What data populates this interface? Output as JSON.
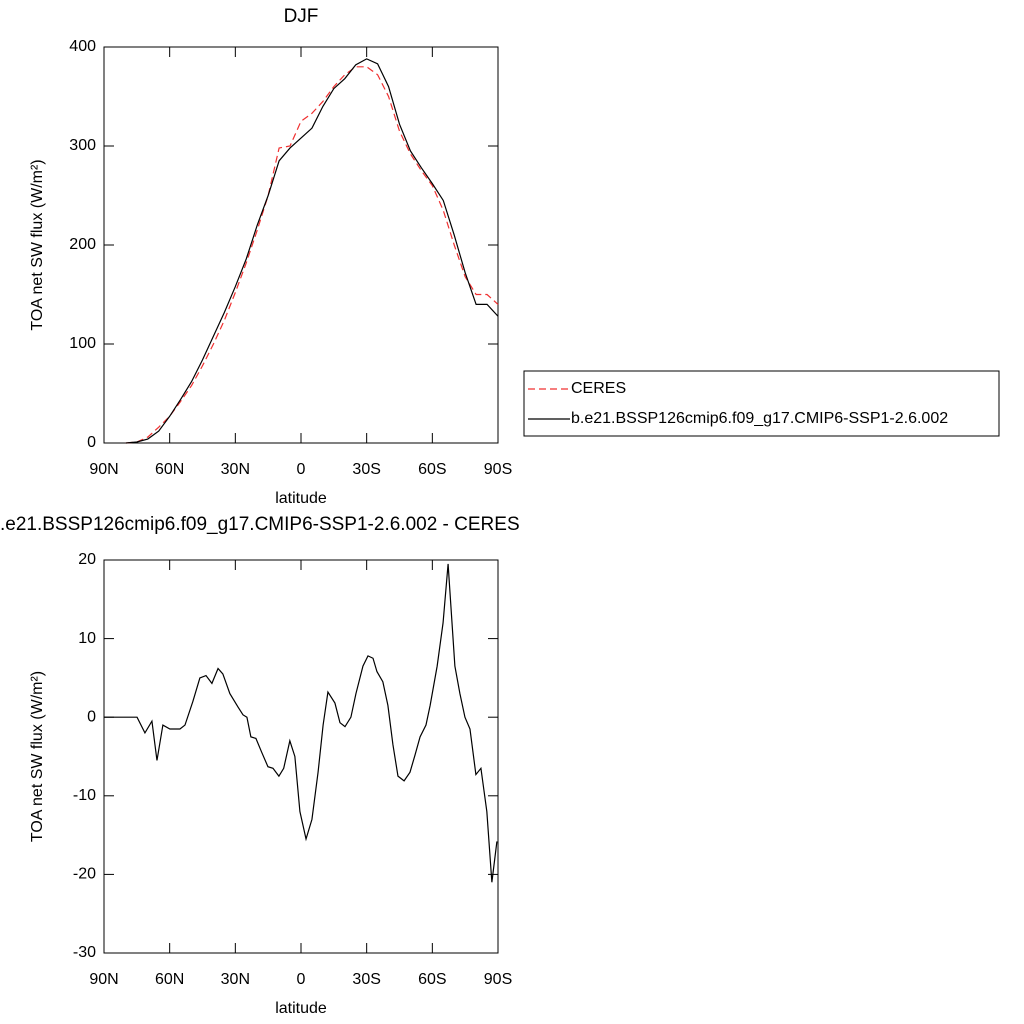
{
  "chart_data": [
    {
      "type": "line",
      "title": "DJF",
      "x_label": "latitude",
      "y_label": "TOA net SW flux (W/m²)",
      "x": [
        80,
        75,
        70,
        65,
        60,
        55,
        50,
        45,
        40,
        35,
        30,
        25,
        20,
        15,
        10,
        5,
        0,
        -5,
        -10,
        -15,
        -20,
        -25,
        -30,
        -35,
        -40,
        -45,
        -50,
        -55,
        -60,
        -65,
        -70,
        -75,
        -80,
        -85,
        -90
      ],
      "series": [
        {
          "name": "CERES",
          "color": "#f03030",
          "dash": true,
          "values": [
            0,
            1,
            6,
            16,
            27,
            42,
            58,
            78,
            100,
            124,
            152,
            182,
            215,
            250,
            298,
            300,
            325,
            333,
            345,
            360,
            372,
            380,
            380,
            372,
            350,
            315,
            292,
            275,
            260,
            235,
            200,
            168,
            150,
            150,
            140
          ]
        },
        {
          "name": "b.e21.BSSP126cmip6.f09_g17.CMIP6-SSP1-2.6.002",
          "color": "#000000",
          "dash": false,
          "values": [
            0,
            1,
            4,
            12,
            27,
            44,
            62,
            84,
            108,
            132,
            158,
            186,
            220,
            250,
            285,
            298,
            308,
            318,
            340,
            358,
            368,
            382,
            388,
            383,
            360,
            322,
            295,
            278,
            262,
            245,
            210,
            172,
            140,
            140,
            128
          ]
        }
      ],
      "xlim": [
        90,
        -90
      ],
      "xticks": [
        {
          "value": 90,
          "label": "90N"
        },
        {
          "value": 60,
          "label": "60N"
        },
        {
          "value": 30,
          "label": "30N"
        },
        0,
        {
          "value": -30,
          "label": "30S"
        },
        {
          "value": -60,
          "label": "60S"
        },
        {
          "value": -90,
          "label": "90S"
        }
      ],
      "ylim": [
        0,
        400
      ],
      "yticks": [
        0,
        100,
        200,
        300,
        400
      ],
      "legend": "right"
    },
    {
      "type": "line",
      "title": ".e21.BSSP126cmip6.f09_g17.CMIP6-SSP1-2.6.002 - CERES",
      "x_label": "latitude",
      "y_label": "TOA net SW flux (W/m²)",
      "x": [
        90,
        74.9,
        71.3,
        68.1,
        65.8,
        63.1,
        59.9,
        55.3,
        53,
        49.4,
        46.2,
        43.4,
        40.7,
        37.9,
        35.7,
        32.5,
        28.8,
        26.5,
        24.7,
        22.9,
        20.6,
        17.9,
        15.1,
        12.8,
        10.1,
        7.9,
        5.1,
        2.8,
        0.5,
        -2.3,
        -5,
        -7.8,
        -10.1,
        -12.3,
        -15.5,
        -17.8,
        -20.1,
        -22.8,
        -25.1,
        -28.3,
        -30.6,
        -32.9,
        -34.7,
        -37.4,
        -39.7,
        -42,
        -44.3,
        -47.1,
        -49.8,
        -52.1,
        -54.4,
        -57.1,
        -59,
        -62.2,
        -64.9,
        -67.2,
        -70.3,
        -72.6,
        -74.9,
        -77.2,
        -79.9,
        -82.2,
        -84.9,
        -87.2,
        -89.5
      ],
      "series": [
        {
          "color": "#000000",
          "dash": false,
          "values": [
            0,
            0,
            -2,
            -0.5,
            -5.5,
            -1,
            -1.5,
            -1.5,
            -1,
            2,
            5,
            5.3,
            4.3,
            6.2,
            5.5,
            3,
            1.3,
            0.3,
            0,
            -2.5,
            -2.7,
            -4.5,
            -6.3,
            -6.5,
            -7.5,
            -6.5,
            -3,
            -5,
            -12,
            -15.5,
            -13,
            -7,
            -1,
            3.2,
            1.8,
            -0.7,
            -1.2,
            0,
            3,
            6.5,
            7.8,
            7.5,
            5.8,
            4.5,
            1.5,
            -3.5,
            -7.5,
            -8.1,
            -7,
            -4.8,
            -2.5,
            -1,
            1.5,
            6.5,
            12,
            19.5,
            6.5,
            3,
            0,
            -1.5,
            -7.3,
            -6.5,
            -12,
            -21,
            -15.8
          ]
        }
      ],
      "xlim": [
        90,
        -90
      ],
      "xticks": [
        {
          "value": 90,
          "label": "90N"
        },
        {
          "value": 60,
          "label": "60N"
        },
        {
          "value": 30,
          "label": "30N"
        },
        0,
        {
          "value": -30,
          "label": "30S"
        },
        {
          "value": -60,
          "label": "60S"
        },
        {
          "value": -90,
          "label": "90S"
        }
      ],
      "ylim": [
        -30,
        20
      ],
      "yticks": [
        -30,
        -20,
        -10,
        0,
        10,
        20
      ]
    }
  ]
}
